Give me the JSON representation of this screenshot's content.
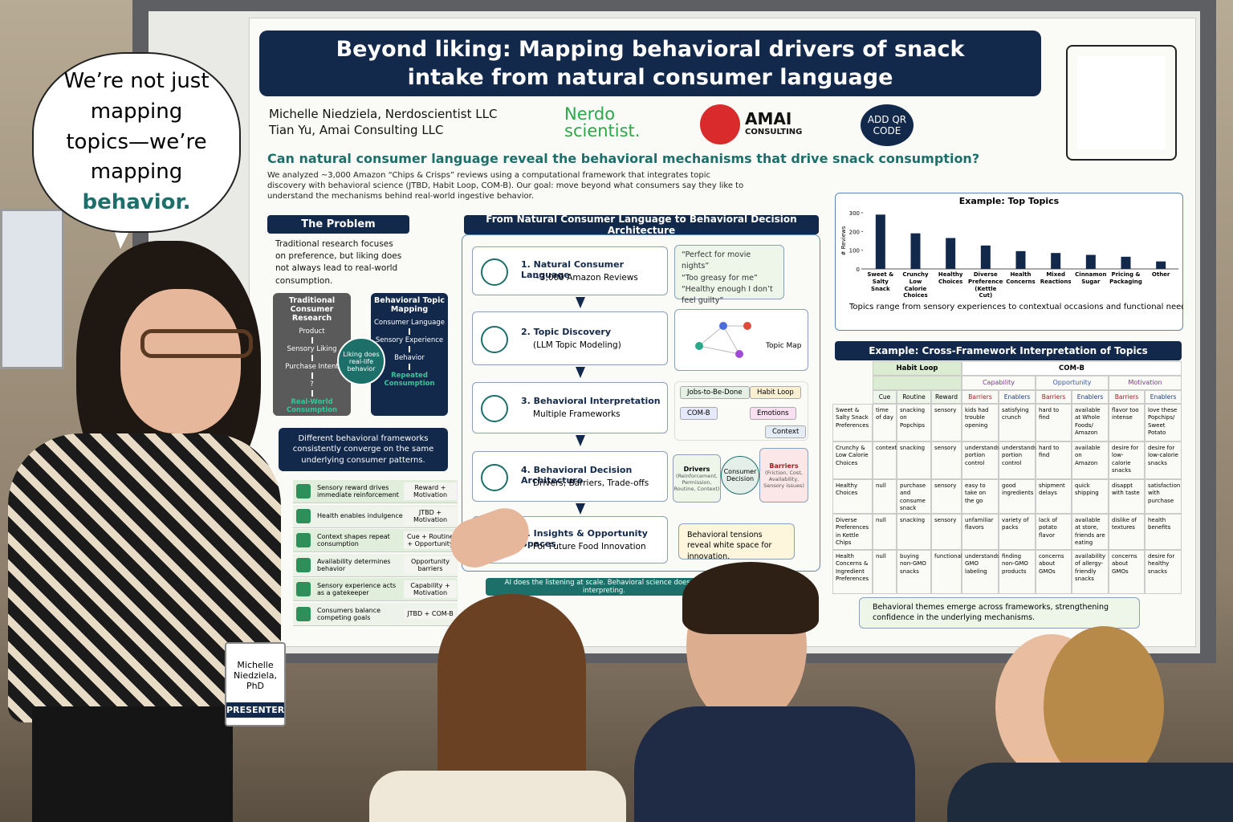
{
  "speech": {
    "text": "We’re not just mapping topics—we’re mapping",
    "emphasis": "behavior."
  },
  "badge": {
    "name": "Michelle Niedziela, PhD",
    "role": "PRESENTER"
  },
  "poster": {
    "title": "Beyond liking: Mapping behavioral drivers of snack intake from natural consumer language",
    "authors": [
      "Michelle Niedziela, Nerdoscientist LLC",
      "Tian Yu, Amai Consulting LLC"
    ],
    "logos": {
      "nerdo": "Nerdo scientist.",
      "amai_name": "AMAI",
      "amai_sub": "CONSULTING",
      "qr_note": "ADD QR CODE"
    },
    "question": "Can natural consumer language reveal the behavioral mechanisms that drive snack consumption?",
    "intro": "We analyzed ~3,000 Amazon “Chips & Crisps” reviews using a computational framework that integrates topic discovery with behavioral science (JTBD, Habit Loop, COM-B). Our goal: move beyond what consumers say they like to understand the mechanisms behind real-world ingestive behavior.",
    "problem": {
      "heading": "The Problem",
      "text": "Traditional research focuses on preference, but liking does not always lead to real-world consumption.",
      "traditional": {
        "title": "Traditional Consumer Research",
        "steps": [
          "Product",
          "Sensory Liking",
          "Purchase Intent",
          "?",
          "Real-World Consumption"
        ]
      },
      "behavioral": {
        "title": "Behavioral Topic Mapping",
        "steps": [
          "Consumer Language",
          "Sensory Experience",
          "Behavior",
          "Repeated Consumption"
        ]
      },
      "bridge": "Liking does real-life behavior"
    },
    "frameworks": {
      "heading": "Different behavioral frameworks consistently converge on the same underlying consumer patterns.",
      "rows": [
        {
          "finding": "Sensory reward drives immediate reinforcement",
          "frameworks": "Reward + Motivation"
        },
        {
          "finding": "Health enables indulgence",
          "frameworks": "JTBD + Motivation"
        },
        {
          "finding": "Context shapes repeat consumption",
          "frameworks": "Cue + Routine + Opportunity"
        },
        {
          "finding": "Availability determines behavior",
          "frameworks": "Opportunity barriers"
        },
        {
          "finding": "Sensory experience acts as a gatekeeper",
          "frameworks": "Capability + Motivation"
        },
        {
          "finding": "Consumers balance competing goals",
          "frameworks": "JTBD + COM-B"
        }
      ]
    },
    "flow": {
      "heading": "From Natural Consumer Language to Behavioral Decision Architecture",
      "steps": [
        {
          "title": "1. Natural Consumer Language",
          "subtitle": "~3,000 Amazon Reviews"
        },
        {
          "title": "2. Topic Discovery",
          "subtitle": "(LLM Topic Modeling)"
        },
        {
          "title": "3. Behavioral Interpretation",
          "subtitle": "Multiple Frameworks"
        },
        {
          "title": "4. Behavioral Decision Architecture",
          "subtitle": "Drivers, Barriers, Trade-offs"
        },
        {
          "title": "5. Insights & Opportunity Spaces",
          "subtitle": "For Future Food Innovation"
        }
      ],
      "quotes": [
        "“Perfect for movie nights”",
        "“Too greasy for me”",
        "“Healthy enough I don’t feel guilty”"
      ],
      "topic_map": "Topic Map",
      "tags": [
        "Jobs-to-Be-Done",
        "Habit Loop",
        "COM-B",
        "Emotions",
        "Context"
      ],
      "drivers": {
        "title": "Drivers",
        "detail": "(Reinforcement, Permission, Routine, Context)"
      },
      "decision": "Consumer Decision",
      "barriers": {
        "title": "Barriers",
        "detail": "(Friction, Cost, Availability, Sensory issues)"
      },
      "tension": "Behavioral tensions reveal white space for innovation.",
      "banner": "AI does the listening at scale. Behavioral science does the interpreting."
    },
    "table": {
      "title": "Example: Cross-Framework Interpretation of Topics",
      "groups": [
        "Habit Loop",
        "COM-B"
      ],
      "subgroups": [
        "Capability",
        "Opportunity",
        "Motivation"
      ],
      "columns": [
        "Cue",
        "Routine",
        "Reward",
        "Barriers",
        "Enablers",
        "Barriers",
        "Enablers",
        "Barriers",
        "Enablers"
      ],
      "rows": [
        {
          "label": "Sweet & Salty Snack Preferences",
          "cells": [
            "time of day",
            "snacking on Popchips",
            "sensory",
            "kids had trouble opening",
            "satisfying crunch",
            "hard to find",
            "available at Whole Foods/ Amazon",
            "flavor too intense",
            "love these Popchips/ Sweet Potato"
          ]
        },
        {
          "label": "Crunchy & Low Calorie Choices",
          "cells": [
            "context",
            "snacking",
            "sensory",
            "understands portion control",
            "understands portion control",
            "hard to find",
            "available on Amazon",
            "desire for low-calorie snacks",
            "desire for low-calorie snacks"
          ]
        },
        {
          "label": "Healthy Choices",
          "cells": [
            "null",
            "purchase and consume snack",
            "sensory",
            "easy to take on the go",
            "good ingredients",
            "shipment delays",
            "quick shipping",
            "disappt with taste",
            "satisfaction with purchase"
          ]
        },
        {
          "label": "Diverse Preferences in Kettle Chips",
          "cells": [
            "null",
            "snacking",
            "sensory",
            "unfamiliar flavors",
            "variety of packs",
            "lack of potato flavor",
            "available at store, friends are eating",
            "dislike of textures",
            "health benefits"
          ]
        },
        {
          "label": "Health Concerns & Ingredient Preferences",
          "cells": [
            "null",
            "buying non-GMO snacks",
            "functional",
            "understands GMO labeling",
            "finding non-GMO products",
            "concerns about GMOs",
            "availability of allergy-friendly snacks",
            "concerns about GMOs",
            "desire for healthy snacks"
          ]
        }
      ],
      "footer": "Behavioral themes emerge across frameworks, strengthening confidence in the underlying mechanisms."
    }
  },
  "chart_data": {
    "type": "bar",
    "title": "Example: Top Topics",
    "ylabel": "# Reviews",
    "categories": [
      "Sweet & Salty Snack",
      "Crunchy Low Calorie Choices",
      "Healthy Choices",
      "Diverse Preferences (Kettle Cut)",
      "Health Concerns",
      "Mixed Reactions",
      "Cinnamon Sugar",
      "Pricing & Packaging",
      "Other"
    ],
    "values": [
      290,
      190,
      165,
      125,
      95,
      85,
      75,
      65,
      40
    ],
    "color": "#13294b",
    "ylim": [
      0,
      300
    ],
    "yticks": [
      0,
      100,
      200,
      300
    ],
    "caption": "Topics range from sensory experiences to contextual occasions and functional needs."
  }
}
